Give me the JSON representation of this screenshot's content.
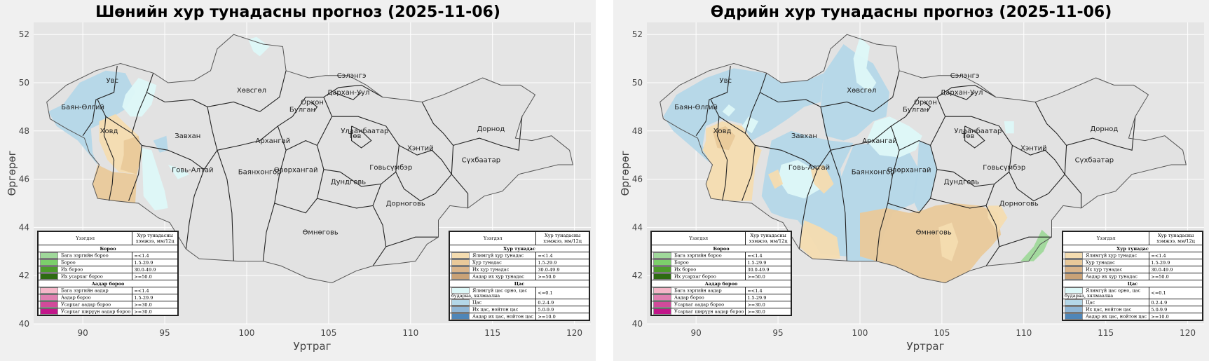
{
  "maps": [
    {
      "id": "night",
      "title": "Шөнийн хур тунадасны прогноз (2025-11-06)",
      "xlabel": "Уртраг",
      "ylabel": "Өргөрөг",
      "xticks": [
        "90",
        "95",
        "100",
        "105",
        "110",
        "115",
        "120"
      ],
      "yticks": [
        "40",
        "42",
        "44",
        "46",
        "48",
        "50",
        "52"
      ],
      "labels": [
        {
          "text": "Увс",
          "lon": 91.8,
          "lat": 50.0
        },
        {
          "text": "Баян-Өлгий",
          "lon": 90.0,
          "lat": 48.9
        },
        {
          "text": "Ховд",
          "lon": 91.6,
          "lat": 47.9
        },
        {
          "text": "Завхан",
          "lon": 96.4,
          "lat": 47.7
        },
        {
          "text": "Говь-Алтай",
          "lon": 96.7,
          "lat": 46.3
        },
        {
          "text": "Хөвсгөл",
          "lon": 100.3,
          "lat": 49.6
        },
        {
          "text": "Архангай",
          "lon": 101.6,
          "lat": 47.5
        },
        {
          "text": "Булган",
          "lon": 103.4,
          "lat": 48.8
        },
        {
          "text": "Орхон",
          "lon": 104.0,
          "lat": 49.1
        },
        {
          "text": "Сэлэнгэ",
          "lon": 106.4,
          "lat": 50.2
        },
        {
          "text": "Дархан-Уул",
          "lon": 106.2,
          "lat": 49.5
        },
        {
          "text": "Улаанбаатар",
          "lon": 107.2,
          "lat": 47.9
        },
        {
          "text": "Төв",
          "lon": 106.6,
          "lat": 47.7
        },
        {
          "text": "Баянхонгор",
          "lon": 100.8,
          "lat": 46.2
        },
        {
          "text": "Өвөрхангай",
          "lon": 103.0,
          "lat": 46.3
        },
        {
          "text": "Дундговь",
          "lon": 106.2,
          "lat": 45.8
        },
        {
          "text": "Говьсүмбэр",
          "lon": 108.8,
          "lat": 46.4
        },
        {
          "text": "Хэнтий",
          "lon": 110.6,
          "lat": 47.2
        },
        {
          "text": "Дорнод",
          "lon": 114.9,
          "lat": 48.0
        },
        {
          "text": "Сүхбаатар",
          "lon": 114.3,
          "lat": 46.7
        },
        {
          "text": "Дорноговь",
          "lon": 109.7,
          "lat": 44.9
        },
        {
          "text": "Өмнөговь",
          "lon": 104.5,
          "lat": 43.7
        }
      ]
    },
    {
      "id": "day",
      "title": "Өдрийн хур тунадасны прогноз (2025-11-06)",
      "xlabel": "Уртраг",
      "ylabel": "Өргөрөг",
      "xticks": [
        "90",
        "95",
        "100",
        "105",
        "110",
        "115",
        "120"
      ],
      "yticks": [
        "40",
        "42",
        "44",
        "46",
        "48",
        "50",
        "52"
      ],
      "labels": [
        {
          "text": "Увс",
          "lon": 91.8,
          "lat": 50.0
        },
        {
          "text": "Баян-Өлгий",
          "lon": 90.0,
          "lat": 48.9
        },
        {
          "text": "Ховд",
          "lon": 91.6,
          "lat": 47.9
        },
        {
          "text": "Завхан",
          "lon": 96.6,
          "lat": 47.7
        },
        {
          "text": "Говь-Алтай",
          "lon": 96.9,
          "lat": 46.4
        },
        {
          "text": "Хөвсгөл",
          "lon": 100.1,
          "lat": 49.6
        },
        {
          "text": "Архангай",
          "lon": 101.2,
          "lat": 47.5
        },
        {
          "text": "Булган",
          "lon": 103.4,
          "lat": 48.8
        },
        {
          "text": "Орхон",
          "lon": 104.0,
          "lat": 49.1
        },
        {
          "text": "Сэлэнгэ",
          "lon": 106.4,
          "lat": 50.2
        },
        {
          "text": "Дархан-Уул",
          "lon": 106.2,
          "lat": 49.5
        },
        {
          "text": "Улаанбаатар",
          "lon": 107.2,
          "lat": 47.9
        },
        {
          "text": "Төв",
          "lon": 106.6,
          "lat": 47.7
        },
        {
          "text": "Баянхонгор",
          "lon": 100.8,
          "lat": 46.2
        },
        {
          "text": "Өвөрхангай",
          "lon": 103.0,
          "lat": 46.3
        },
        {
          "text": "Дундговь",
          "lon": 106.2,
          "lat": 45.8
        },
        {
          "text": "Говьсүмбэр",
          "lon": 108.8,
          "lat": 46.4
        },
        {
          "text": "Хэнтий",
          "lon": 110.6,
          "lat": 47.2
        },
        {
          "text": "Дорнод",
          "lon": 114.9,
          "lat": 48.0
        },
        {
          "text": "Сүхбаатар",
          "lon": 114.3,
          "lat": 46.7
        },
        {
          "text": "Дорноговь",
          "lon": 109.7,
          "lat": 44.9
        },
        {
          "text": "Өмнөговь",
          "lon": 104.5,
          "lat": 43.7
        }
      ]
    }
  ],
  "colors": {
    "rain_low": "#9fd89a",
    "rain": "#7ccf6b",
    "rain_heavy": "#4c9a2a",
    "rain_vheavy": "#2e6b12",
    "sleet_low": "#f4b6c8",
    "sleet": "#e07fb0",
    "sleet_heavy": "#d14a9a",
    "sleet_vheavy": "#c2168a",
    "mix_low": "#f4dcb0",
    "mix": "#e9c99a",
    "mix_heavy": "#d9b48a",
    "mix_vheavy": "#c9a277",
    "snow_low": "#ddf8f8",
    "snow": "#b4d7e8",
    "snow_heavy": "#8fb6d6",
    "snow_vheavy": "#4f86b8"
  },
  "legend_left": {
    "col_phenomenon": "Үзэгдэл",
    "col_amount": "Хур тунадасны хэмжээ, мм/12ц",
    "sections": [
      {
        "title": "Бороо",
        "rows": [
          {
            "label": "Бага зэргийн бороо",
            "value": "=<1.4",
            "color_key": "rain_low"
          },
          {
            "label": "Бороо",
            "value": "1.5-29.9",
            "color_key": "rain"
          },
          {
            "label": "Их бороо",
            "value": "30.0-49.9",
            "color_key": "rain_heavy"
          },
          {
            "label": "Их усархаг бороо",
            "value": ">=50.0",
            "color_key": "rain_vheavy"
          }
        ]
      },
      {
        "title": "Аадар бороо",
        "rows": [
          {
            "label": "Бага зэргийн аадар",
            "value": "=<1.4",
            "color_key": "sleet_low"
          },
          {
            "label": "Аадар бороо",
            "value": "1.5-29.9",
            "color_key": "sleet"
          },
          {
            "label": "Усархаг аадар бороо",
            "value": ">=30.0",
            "color_key": "sleet_heavy"
          },
          {
            "label": "Усархаг ширүүн аадар бороо",
            "value": ">=30.0",
            "color_key": "sleet_vheavy"
          }
        ]
      }
    ]
  },
  "legend_right": {
    "col_phenomenon": "Үзэгдэл",
    "col_amount": "Хур тунадасны хэмжээ, мм/12ц",
    "sections": [
      {
        "title": "Хур тунадас",
        "rows": [
          {
            "label": "Ялимгүй хур тунадас",
            "value": "=<1.4",
            "color_key": "mix_low"
          },
          {
            "label": "Хур тунадас",
            "value": "1.5-29.9",
            "color_key": "mix"
          },
          {
            "label": "Их хур тунадас",
            "value": "30.0-49.9",
            "color_key": "mix_heavy"
          },
          {
            "label": "Аадар их хур тунадас",
            "value": ">=50.0",
            "color_key": "mix_vheavy"
          }
        ]
      },
      {
        "title": "Цас",
        "rows": [
          {
            "label": "Ялимгүй цас орно, цас бударна, хялмаална",
            "value": "<=0.1",
            "color_key": "snow_low",
            "tall": true
          },
          {
            "label": "Цас",
            "value": "0.2-4.9",
            "color_key": "snow"
          },
          {
            "label": "Их цас, нойтон цас",
            "value": "5.0-9.9",
            "color_key": "snow_heavy"
          },
          {
            "label": "Аадар их цас, нойтон цас",
            "value": ">=10.0",
            "color_key": "snow_vheavy"
          }
        ]
      }
    ]
  }
}
